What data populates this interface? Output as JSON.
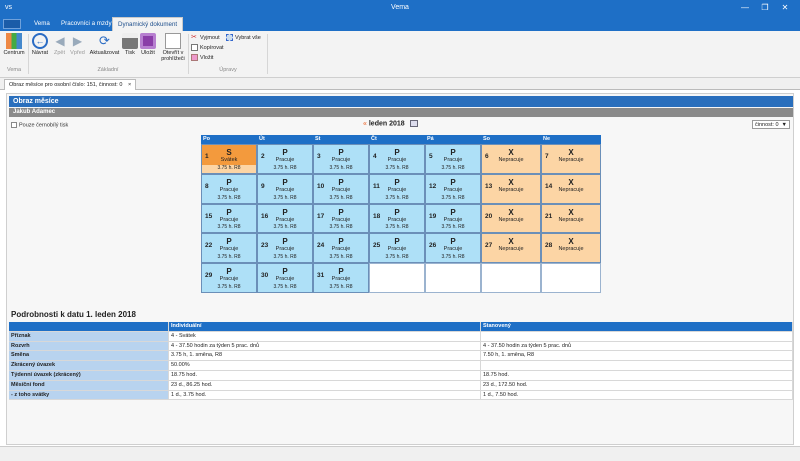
{
  "window": {
    "app": "vs",
    "title": "Vema"
  },
  "ribbon_tabs": [
    "Vema",
    "Pracovníci a mzdy",
    "Dynamický dokument"
  ],
  "ribbon": {
    "centrum": "Centrum",
    "navrat": "Návrat",
    "zpet": "Zpět",
    "vpred": "Vpřed",
    "aktualizovat": "Aktualizovat",
    "tisk": "Tisk",
    "ulozit": "Uložit",
    "otevrit": "Otevřít v",
    "otevrit2": "prohlížeči",
    "vyjmout": "Vyjmout",
    "kopirovat": "Kopírovat",
    "vlozit": "Vložit",
    "vybrat_vse": "Vybrat vše",
    "group_vema": "Vema",
    "group_zakladni": "Základní",
    "group_upravy": "Úpravy"
  },
  "doc_tab": "Obraz měsíce pro osobní číslo: 151, činnost: 0",
  "header": {
    "title": "Obraz měsíce",
    "person": "Jakub Adamec"
  },
  "bw_print": "Pouze černobílý tisk",
  "month": "leden 2018",
  "cinnost": "činnost: 0",
  "days": [
    "Po",
    "Út",
    "St",
    "Čt",
    "Pá",
    "So",
    "Ne"
  ],
  "calendar": [
    {
      "d": "1",
      "c": "S",
      "t": "Svátek",
      "h": "3.75 h.   R8",
      "k": "h"
    },
    {
      "d": "2",
      "c": "P",
      "t": "Pracuje",
      "h": "3.75 h.   R8",
      "k": "w"
    },
    {
      "d": "3",
      "c": "P",
      "t": "Pracuje",
      "h": "3.75 h.   R8",
      "k": "w"
    },
    {
      "d": "4",
      "c": "P",
      "t": "Pracuje",
      "h": "3.75 h.   R8",
      "k": "w"
    },
    {
      "d": "5",
      "c": "P",
      "t": "Pracuje",
      "h": "3.75 h.   R8",
      "k": "w"
    },
    {
      "d": "6",
      "c": "X",
      "t": "Nepracuje",
      "h": "",
      "k": "o"
    },
    {
      "d": "7",
      "c": "X",
      "t": "Nepracuje",
      "h": "",
      "k": "o"
    },
    {
      "d": "8",
      "c": "P",
      "t": "Pracuje",
      "h": "3.75 h.   R8",
      "k": "w"
    },
    {
      "d": "9",
      "c": "P",
      "t": "Pracuje",
      "h": "3.75 h.   R8",
      "k": "w"
    },
    {
      "d": "10",
      "c": "P",
      "t": "Pracuje",
      "h": "3.75 h.   R8",
      "k": "w"
    },
    {
      "d": "11",
      "c": "P",
      "t": "Pracuje",
      "h": "3.75 h.   R8",
      "k": "w"
    },
    {
      "d": "12",
      "c": "P",
      "t": "Pracuje",
      "h": "3.75 h.   R8",
      "k": "w"
    },
    {
      "d": "13",
      "c": "X",
      "t": "Nepracuje",
      "h": "",
      "k": "o"
    },
    {
      "d": "14",
      "c": "X",
      "t": "Nepracuje",
      "h": "",
      "k": "o"
    },
    {
      "d": "15",
      "c": "P",
      "t": "Pracuje",
      "h": "3.75 h.   R8",
      "k": "w"
    },
    {
      "d": "16",
      "c": "P",
      "t": "Pracuje",
      "h": "3.75 h.   R8",
      "k": "w"
    },
    {
      "d": "17",
      "c": "P",
      "t": "Pracuje",
      "h": "3.75 h.   R8",
      "k": "w"
    },
    {
      "d": "18",
      "c": "P",
      "t": "Pracuje",
      "h": "3.75 h.   R8",
      "k": "w"
    },
    {
      "d": "19",
      "c": "P",
      "t": "Pracuje",
      "h": "3.75 h.   R8",
      "k": "w"
    },
    {
      "d": "20",
      "c": "X",
      "t": "Nepracuje",
      "h": "",
      "k": "o"
    },
    {
      "d": "21",
      "c": "X",
      "t": "Nepracuje",
      "h": "",
      "k": "o"
    },
    {
      "d": "22",
      "c": "P",
      "t": "Pracuje",
      "h": "3.75 h.   R8",
      "k": "w"
    },
    {
      "d": "23",
      "c": "P",
      "t": "Pracuje",
      "h": "3.75 h.   R8",
      "k": "w"
    },
    {
      "d": "24",
      "c": "P",
      "t": "Pracuje",
      "h": "3.75 h.   R8",
      "k": "w"
    },
    {
      "d": "25",
      "c": "P",
      "t": "Pracuje",
      "h": "3.75 h.   R8",
      "k": "w"
    },
    {
      "d": "26",
      "c": "P",
      "t": "Pracuje",
      "h": "3.75 h.   R8",
      "k": "w"
    },
    {
      "d": "27",
      "c": "X",
      "t": "Nepracuje",
      "h": "",
      "k": "o"
    },
    {
      "d": "28",
      "c": "X",
      "t": "Nepracuje",
      "h": "",
      "k": "o"
    },
    {
      "d": "29",
      "c": "P",
      "t": "Pracuje",
      "h": "3.75 h.   R8",
      "k": "w"
    },
    {
      "d": "30",
      "c": "P",
      "t": "Pracuje",
      "h": "3.75 h.   R8",
      "k": "w"
    },
    {
      "d": "31",
      "c": "P",
      "t": "Pracuje",
      "h": "3.75 h.   R8",
      "k": "w"
    }
  ],
  "details": {
    "title": "Podrobnosti k datu  1. leden 2018",
    "col_a": "Individuální",
    "col_b": "Stanovený",
    "rows": [
      {
        "l": "Příznak",
        "a": "4 - Svátek",
        "b": ""
      },
      {
        "l": "Rozvrh",
        "a": "4 - 37.50 hodin za týden 5 prac. dnů",
        "b": "4 - 37.50 hodin za týden 5 prac. dnů"
      },
      {
        "l": "Směna",
        "a": "3.75 h, 1. směna, R8",
        "b": "7.50 h, 1. směna, R8"
      },
      {
        "l": "Zkrácený úvazek",
        "a": "50.00%",
        "b": ""
      },
      {
        "l": "Týdenní úvazek (zkrácený)",
        "a": "18.75 hod.",
        "b": "18.75 hod."
      },
      {
        "l": "Měsíční fond",
        "a": "23 d., 86.25 hod.",
        "b": "23 d., 172.50 hod."
      },
      {
        "l": "  - z toho svátky",
        "a": "1 d., 3.75 hod.",
        "b": "1 d., 7.50 hod."
      }
    ]
  }
}
